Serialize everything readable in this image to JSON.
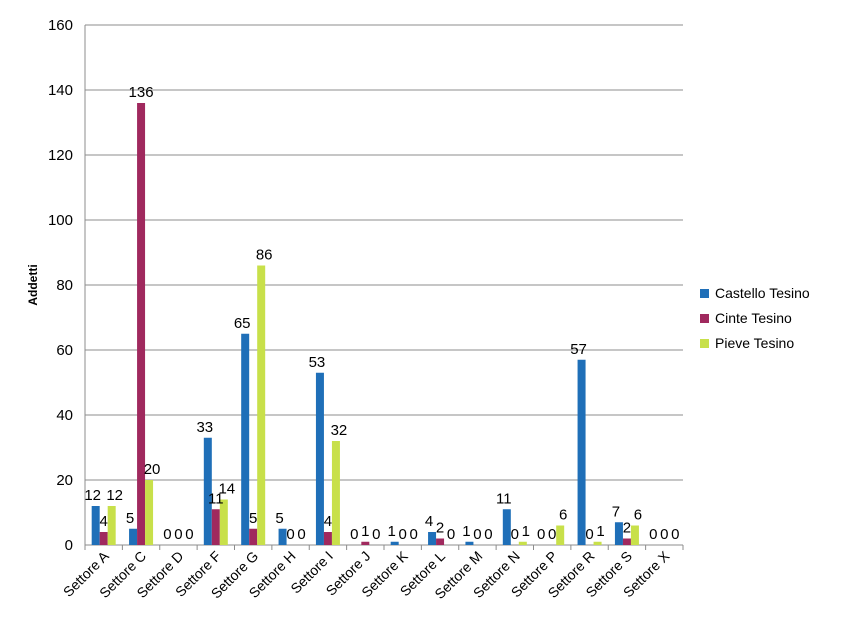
{
  "chart_data": {
    "type": "bar",
    "title": "",
    "xlabel": "",
    "ylabel": "Addetti",
    "ylim": [
      0,
      160
    ],
    "yticks": [
      0,
      20,
      40,
      60,
      80,
      100,
      120,
      140,
      160
    ],
    "grid": true,
    "legend_position": "right",
    "categories": [
      "Settore A",
      "Settore C",
      "Settore D",
      "Settore F",
      "Settore G",
      "Settore H",
      "Settore I",
      "Settore J",
      "Settore K",
      "Settore L",
      "Settore M",
      "Settore N",
      "Settore P",
      "Settore R",
      "Settore S",
      "Settore X"
    ],
    "series": [
      {
        "name": "Castello Tesino",
        "color": "#1F6FB8",
        "values": [
          12,
          5,
          0,
          33,
          65,
          5,
          53,
          0,
          1,
          4,
          1,
          11,
          0,
          57,
          7,
          0
        ]
      },
      {
        "name": "Cinte Tesino",
        "color": "#A0295E",
        "values": [
          4,
          136,
          0,
          11,
          5,
          0,
          4,
          1,
          0,
          2,
          0,
          0,
          0,
          0,
          2,
          0
        ]
      },
      {
        "name": "Pieve Tesino",
        "color": "#C8E04A",
        "values": [
          12,
          20,
          0,
          14,
          86,
          0,
          32,
          0,
          0,
          0,
          0,
          1,
          6,
          1,
          6,
          0
        ]
      }
    ]
  }
}
